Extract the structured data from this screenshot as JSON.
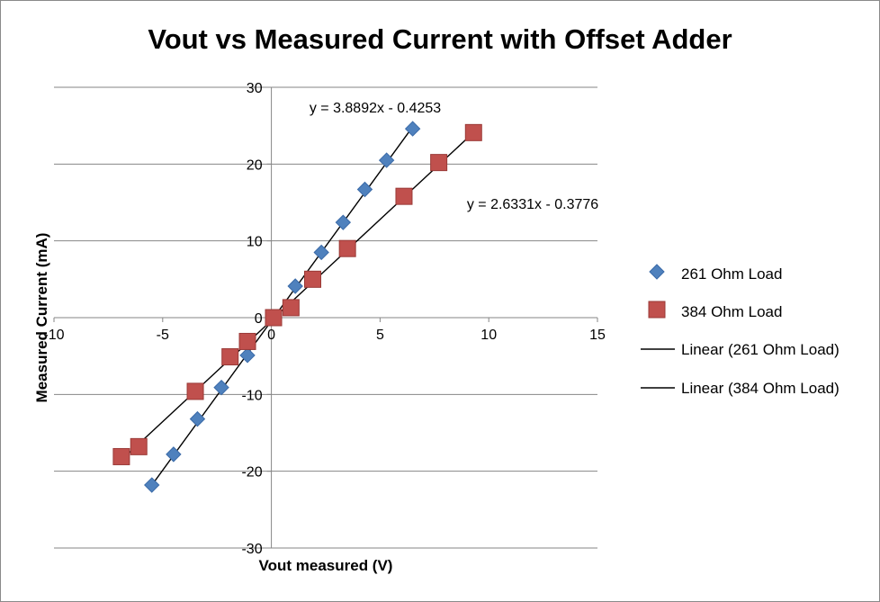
{
  "chart_data": {
    "type": "scatter",
    "title": "Vout vs Measured Current with Offset Adder",
    "xlabel": "Vout measured (V)",
    "ylabel": "Measured Current (mA)",
    "xlim": [
      -10,
      15
    ],
    "ylim": [
      -30,
      30
    ],
    "xticks": [
      -10,
      -5,
      0,
      5,
      10,
      15
    ],
    "yticks": [
      -30,
      -20,
      -10,
      0,
      10,
      20,
      30
    ],
    "grid": "horizontal",
    "legend_position": "right",
    "series": [
      {
        "name": "261 Ohm Load",
        "marker": "diamond",
        "color": "#4f81bd",
        "x": [
          -5.5,
          -4.5,
          -3.4,
          -2.3,
          -1.1,
          1.1,
          2.3,
          3.3,
          4.3,
          5.3,
          6.5
        ],
        "y": [
          -21.8,
          -17.8,
          -13.2,
          -9.1,
          -4.9,
          4.1,
          8.5,
          12.4,
          16.7,
          20.5,
          24.6
        ]
      },
      {
        "name": "384 Ohm Load",
        "marker": "square",
        "color": "#c0504d",
        "x": [
          -6.9,
          -6.1,
          -3.5,
          -1.9,
          -1.1,
          0.1,
          0.9,
          1.9,
          3.5,
          6.1,
          7.7,
          9.3
        ],
        "y": [
          -18.1,
          -16.8,
          -9.6,
          -5.1,
          -3.1,
          0.0,
          1.3,
          5.0,
          9.0,
          15.8,
          20.2,
          24.1
        ]
      }
    ],
    "trendlines": [
      {
        "name": "Linear (261 Ohm Load)",
        "slope": 3.8892,
        "intercept": -0.4253,
        "x_range": [
          -5.5,
          6.5
        ],
        "equation": "y = 3.8892x - 0.4253",
        "color": "#000000"
      },
      {
        "name": "Linear (384 Ohm Load)",
        "slope": 2.6331,
        "intercept": -0.3776,
        "x_range": [
          -6.9,
          9.3
        ],
        "equation": "y = 2.6331x - 0.3776",
        "color": "#000000"
      }
    ]
  }
}
